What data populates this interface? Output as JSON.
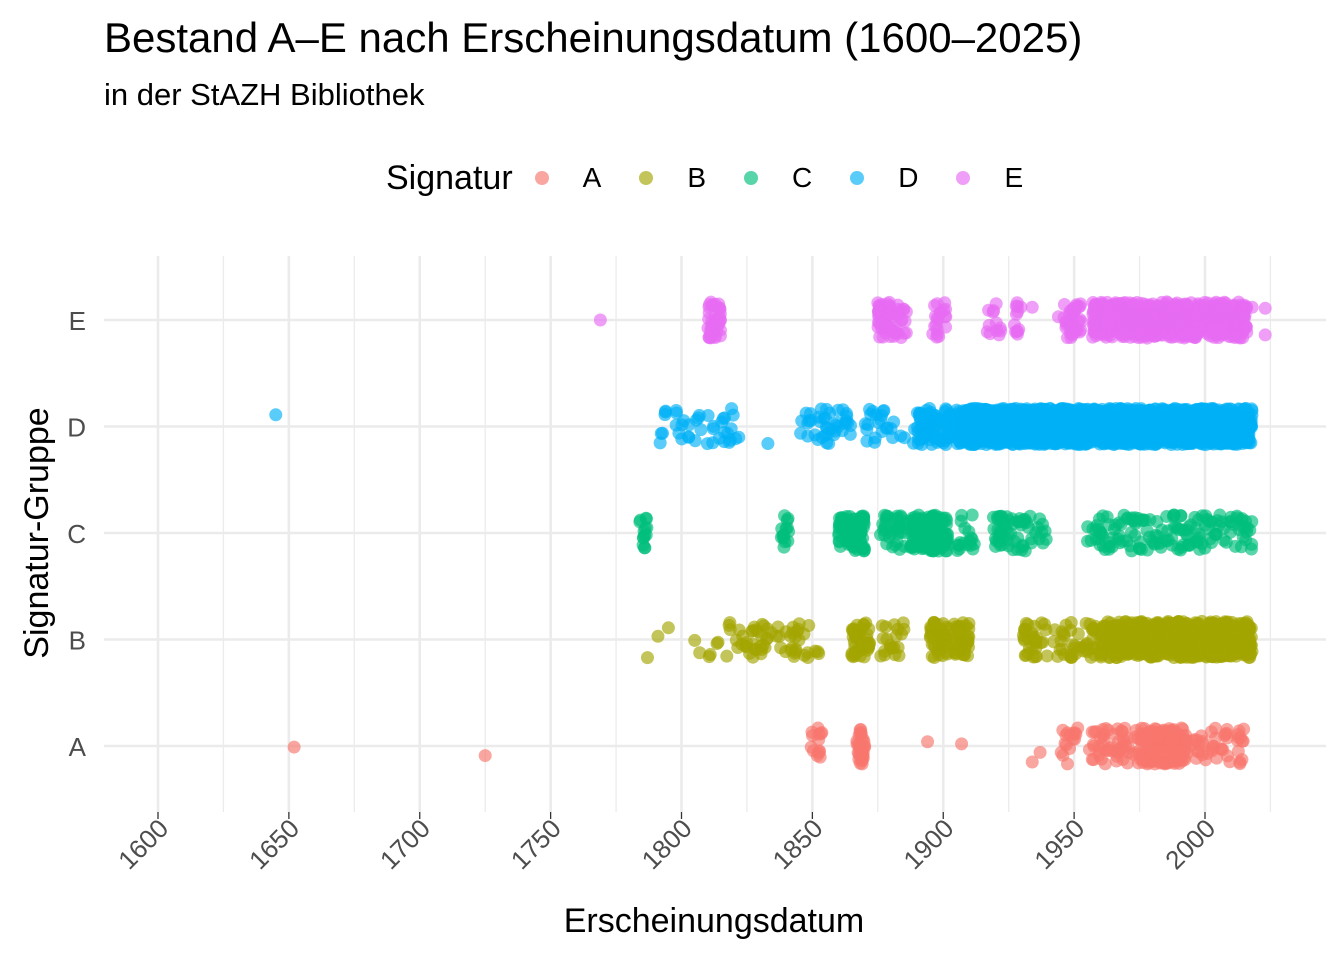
{
  "chart_data": {
    "type": "scatter",
    "title": "Bestand A–E nach Erscheinungsdatum (1600–2025)",
    "subtitle": "in der StAZH Bibliothek",
    "xlabel": "Erscheinungsdatum",
    "ylabel": "Signatur-Gruppe",
    "legend_title": "Signatur",
    "legend_position": "top",
    "grid": true,
    "xlim": [
      1582,
      2029
    ],
    "x_ticks": [
      1600,
      1650,
      1700,
      1750,
      1800,
      1850,
      1900,
      1950,
      2000
    ],
    "categories": [
      "A",
      "B",
      "C",
      "D",
      "E"
    ],
    "jitter_note_hidden": false,
    "series": [
      {
        "name": "A",
        "color": "#F8766D",
        "isolated_points": [
          [
            1652,
            -0.01
          ],
          [
            1725,
            -0.09
          ],
          [
            1894,
            0.04
          ],
          [
            1907,
            0.02
          ],
          [
            1934,
            -0.15
          ],
          [
            1937,
            -0.06
          ]
        ],
        "clusters": [
          {
            "from": 1849,
            "to": 1854,
            "count": 14
          },
          {
            "from": 1867,
            "to": 1870,
            "count": 34
          },
          {
            "from": 1945,
            "to": 1953,
            "count": 16
          },
          {
            "from": 1955,
            "to": 1975,
            "count": 55
          },
          {
            "from": 1975,
            "to": 1993,
            "count": 160
          },
          {
            "from": 1993,
            "to": 2015,
            "count": 45
          }
        ]
      },
      {
        "name": "B",
        "color": "#A3A500",
        "isolated_points": [
          [
            1787,
            -0.17
          ],
          [
            1791,
            0.03
          ],
          [
            1795,
            0.11
          ]
        ],
        "clusters": [
          {
            "from": 1805,
            "to": 1830,
            "count": 28
          },
          {
            "from": 1830,
            "to": 1855,
            "count": 40
          },
          {
            "from": 1865,
            "to": 1872,
            "count": 45
          },
          {
            "from": 1876,
            "to": 1885,
            "count": 20
          },
          {
            "from": 1895,
            "to": 1902,
            "count": 55
          },
          {
            "from": 1904,
            "to": 1910,
            "count": 45
          },
          {
            "from": 1930,
            "to": 1960,
            "count": 75
          },
          {
            "from": 1960,
            "to": 2018,
            "count": 620
          }
        ]
      },
      {
        "name": "C",
        "color": "#00BF7D",
        "isolated_points": [],
        "clusters": [
          {
            "from": 1784,
            "to": 1787,
            "count": 14
          },
          {
            "from": 1838,
            "to": 1841,
            "count": 14
          },
          {
            "from": 1860,
            "to": 1870,
            "count": 90
          },
          {
            "from": 1875,
            "to": 1888,
            "count": 40
          },
          {
            "from": 1888,
            "to": 1902,
            "count": 120
          },
          {
            "from": 1905,
            "to": 1912,
            "count": 18
          },
          {
            "from": 1918,
            "to": 1940,
            "count": 60
          },
          {
            "from": 1955,
            "to": 2018,
            "count": 150
          }
        ]
      },
      {
        "name": "D",
        "color": "#00B0F6",
        "isolated_points": [
          [
            1645,
            0.11
          ],
          [
            1833,
            -0.16
          ]
        ],
        "clusters": [
          {
            "from": 1790,
            "to": 1822,
            "count": 40
          },
          {
            "from": 1845,
            "to": 1865,
            "count": 40
          },
          {
            "from": 1870,
            "to": 1890,
            "count": 25
          },
          {
            "from": 1890,
            "to": 1908,
            "count": 110
          },
          {
            "from": 1908,
            "to": 2018,
            "count": 2200
          }
        ]
      },
      {
        "name": "E",
        "color": "#E76BF3",
        "isolated_points": [
          [
            1769,
            0.0
          ],
          [
            1934,
            0.12
          ],
          [
            1944,
            0.03
          ],
          [
            2018,
            0.12
          ],
          [
            2023,
            0.11
          ],
          [
            2023,
            -0.14
          ]
        ],
        "clusters": [
          {
            "from": 1810,
            "to": 1815,
            "count": 45
          },
          {
            "from": 1875,
            "to": 1886,
            "count": 65
          },
          {
            "from": 1896,
            "to": 1901,
            "count": 20
          },
          {
            "from": 1916,
            "to": 1922,
            "count": 12
          },
          {
            "from": 1927,
            "to": 1930,
            "count": 12
          },
          {
            "from": 1946,
            "to": 1953,
            "count": 40
          },
          {
            "from": 1957,
            "to": 2016,
            "count": 620
          }
        ]
      }
    ]
  }
}
